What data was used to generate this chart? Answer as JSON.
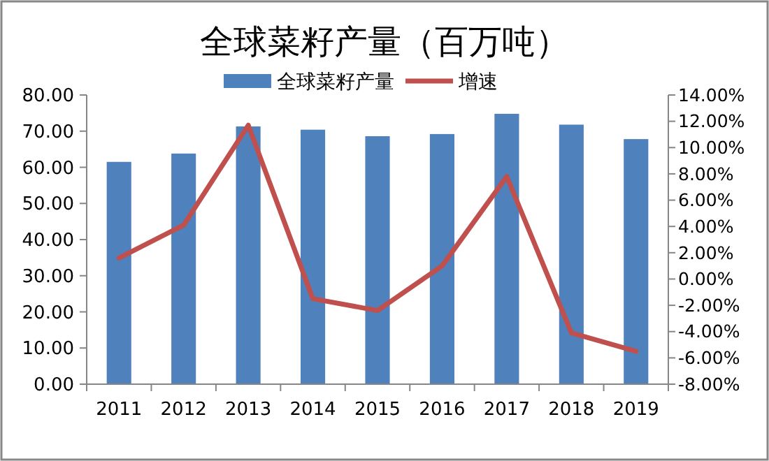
{
  "chart_data": {
    "type": "bar",
    "title": "全球菜籽产量（百万吨）",
    "categories": [
      "2011",
      "2012",
      "2013",
      "2014",
      "2015",
      "2016",
      "2017",
      "2018",
      "2019"
    ],
    "series": [
      {
        "name": "全球菜籽产量",
        "color": "#4f81bd",
        "values": [
          61.5,
          63.8,
          71.3,
          70.4,
          68.6,
          69.2,
          74.8,
          71.8,
          67.8
        ]
      },
      {
        "name": "增速",
        "type": "line",
        "axis": "y2",
        "color": "#c0504d",
        "values": [
          1.6,
          4.1,
          11.7,
          -1.5,
          -2.4,
          1.0,
          7.8,
          -4.1,
          -5.5
        ]
      }
    ],
    "ylim": [
      0,
      80
    ],
    "yticks": [
      {
        "value": 0,
        "label": "0.00"
      },
      {
        "value": 10,
        "label": "10.00"
      },
      {
        "value": 20,
        "label": "20.00"
      },
      {
        "value": 30,
        "label": "30.00"
      },
      {
        "value": 40,
        "label": "40.00"
      },
      {
        "value": 50,
        "label": "50.00"
      },
      {
        "value": 60,
        "label": "60.00"
      },
      {
        "value": 70,
        "label": "70.00"
      },
      {
        "value": 80,
        "label": "80.00"
      }
    ],
    "y2lim": [
      -8,
      14
    ],
    "y2ticks": [
      {
        "value": -8,
        "label": "-8.00%"
      },
      {
        "value": -6,
        "label": "-6.00%"
      },
      {
        "value": -4,
        "label": "-4.00%"
      },
      {
        "value": -2,
        "label": "-2.00%"
      },
      {
        "value": 0,
        "label": "0.00%"
      },
      {
        "value": 2,
        "label": "2.00%"
      },
      {
        "value": 4,
        "label": "4.00%"
      },
      {
        "value": 6,
        "label": "6.00%"
      },
      {
        "value": 8,
        "label": "8.00%"
      },
      {
        "value": 10,
        "label": "10.00%"
      },
      {
        "value": 12,
        "label": "12.00%"
      },
      {
        "value": 14,
        "label": "14.00%"
      }
    ],
    "legend": "top",
    "grid": false,
    "marker": "none"
  }
}
